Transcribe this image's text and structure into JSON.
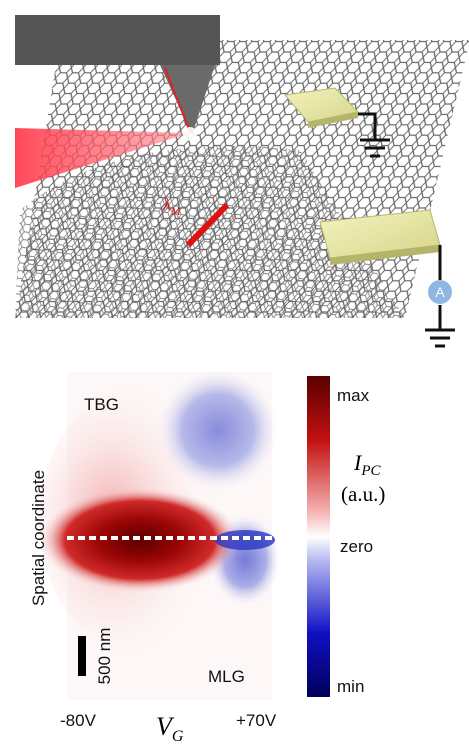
{
  "schematic": {
    "wavelength_label": {
      "symbol": "λ",
      "subscript": "M"
    },
    "ammeter_label": "A"
  },
  "map": {
    "top_label": "TBG",
    "bottom_label": "MLG",
    "y_axis_label": "Spatial coordinate",
    "scale_bar_label": "500 nm",
    "x_start_label": "-80V",
    "x_end_label": "+70V",
    "x_axis_label": {
      "symbol": "V",
      "subscript": "G"
    }
  },
  "colorbar": {
    "max_label": "max",
    "quantity": {
      "symbol": "I",
      "subscript": "PC"
    },
    "unit_label": "(a.u.)",
    "zero_label": "zero",
    "min_label": "min"
  }
}
